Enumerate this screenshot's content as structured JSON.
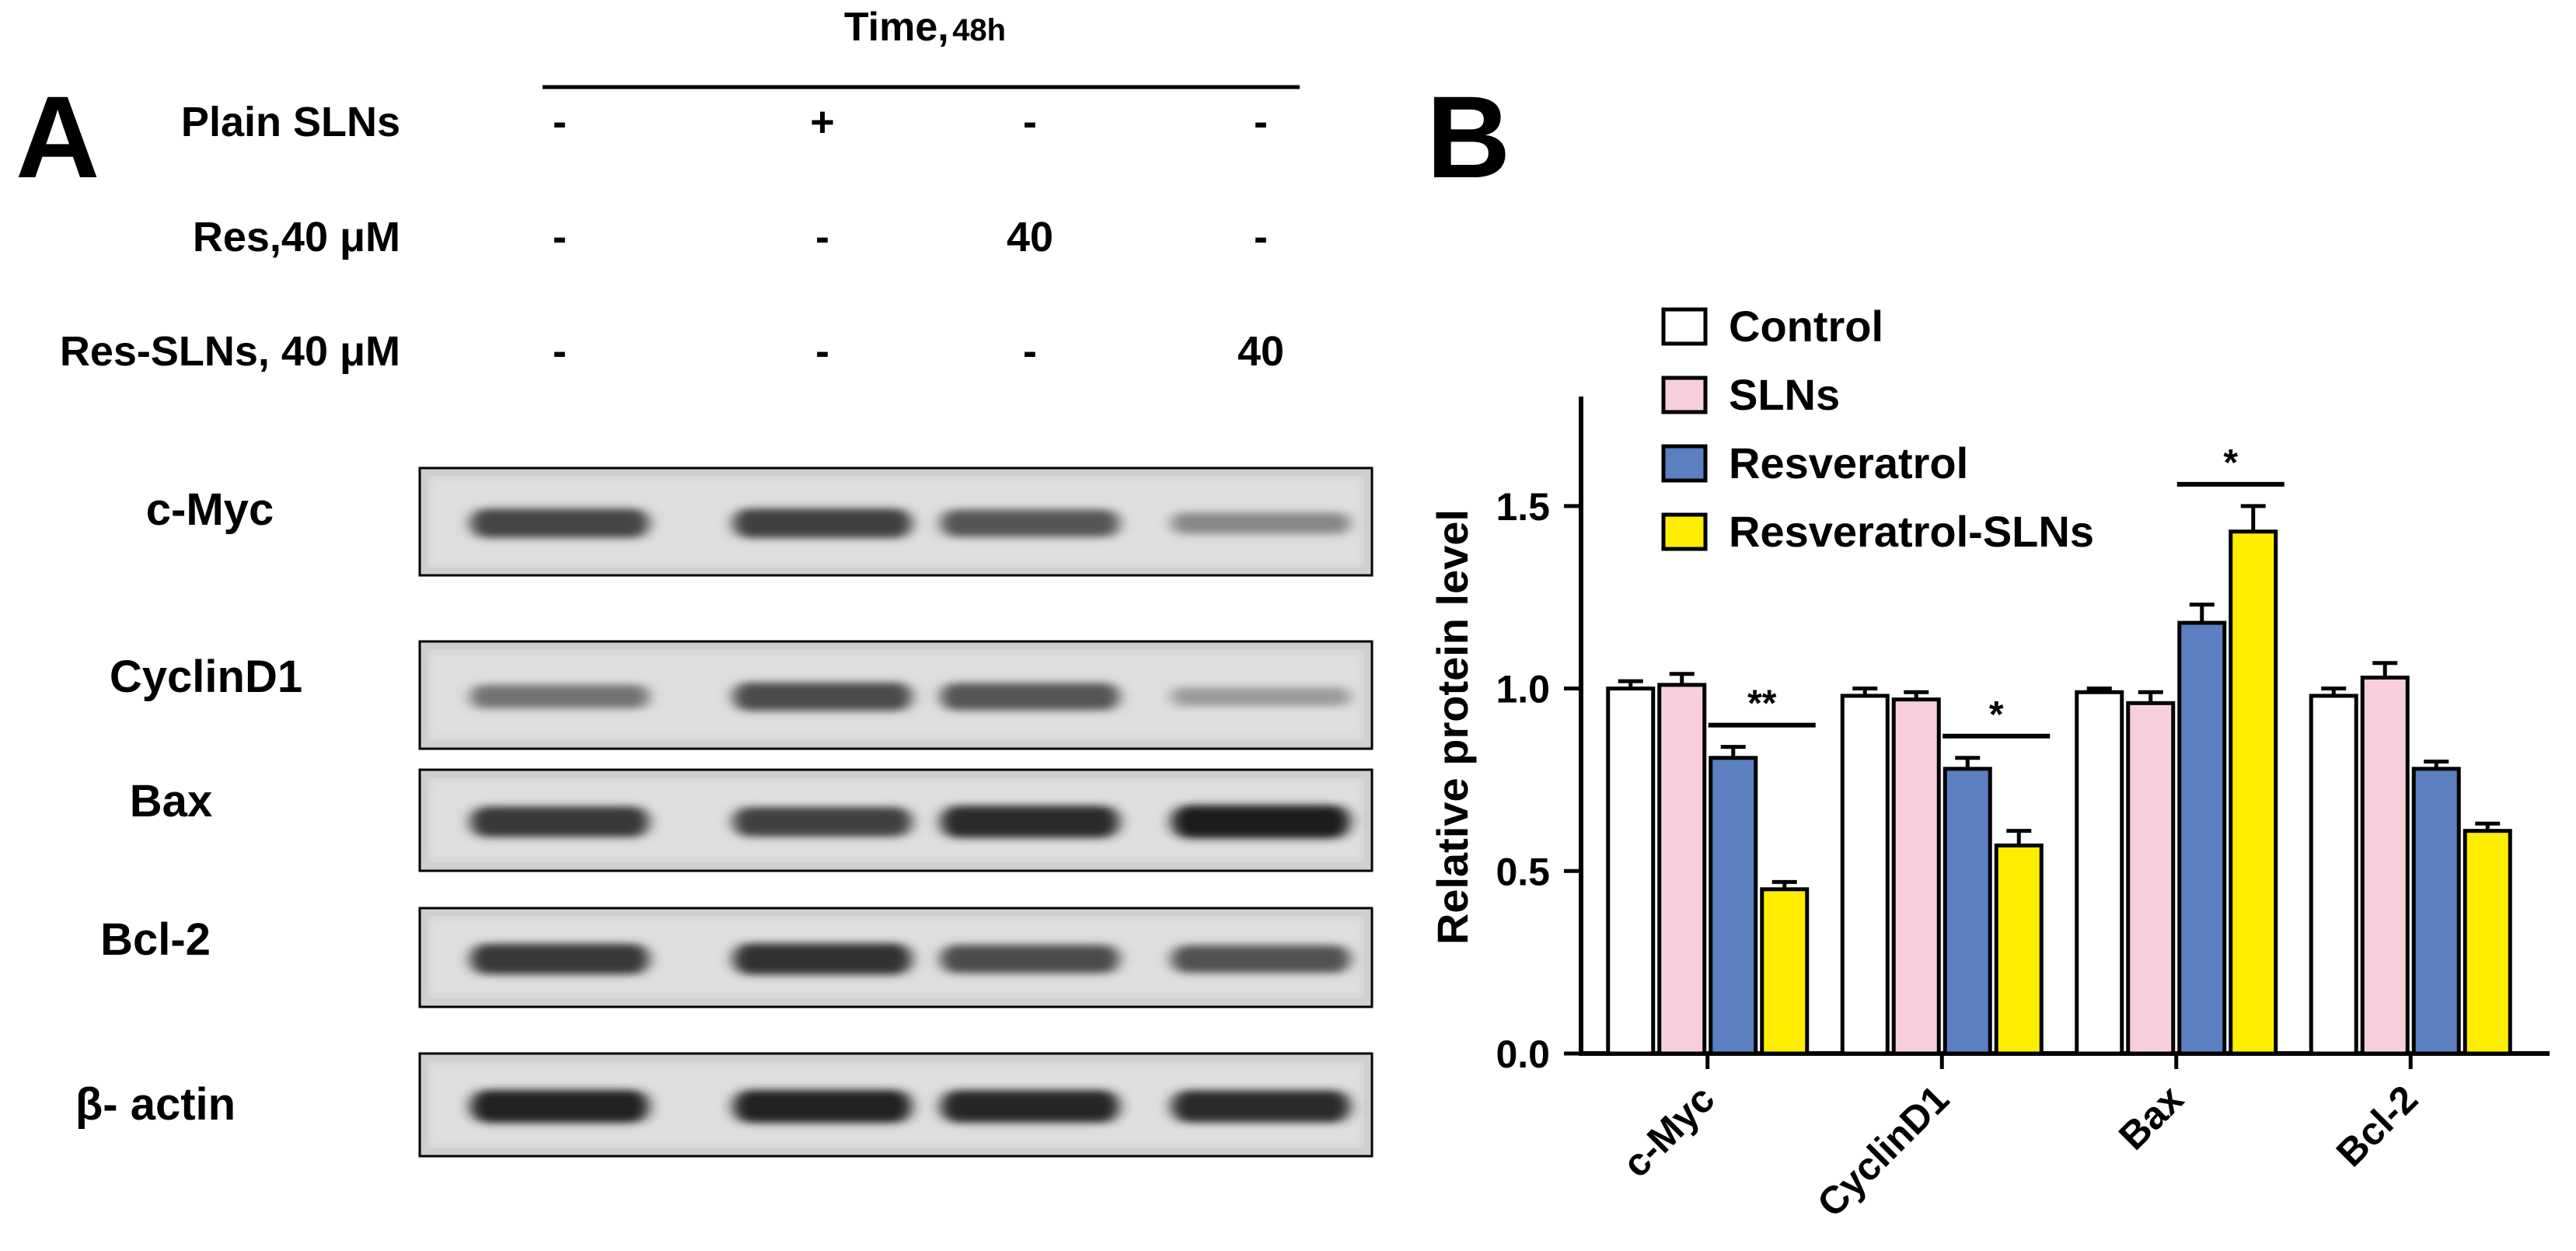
{
  "panel_a": {
    "letter": "A",
    "header": {
      "label": "Time,",
      "duration": "48h"
    },
    "treatments": [
      {
        "label": "Plain SLNs",
        "values": [
          "-",
          "+",
          "-",
          "-"
        ]
      },
      {
        "label": "Res,40 μM",
        "values": [
          "-",
          "-",
          "40",
          "-"
        ]
      },
      {
        "label": "Res-SLNs, 40 μM",
        "values": [
          "-",
          "-",
          "-",
          "40"
        ]
      }
    ],
    "blots": [
      {
        "label": "c-Myc",
        "intensity": [
          0.78,
          0.8,
          0.7,
          0.45
        ]
      },
      {
        "label": "CyclinD1",
        "intensity": [
          0.55,
          0.75,
          0.7,
          0.35
        ]
      },
      {
        "label": "Bax",
        "intensity": [
          0.85,
          0.8,
          0.92,
          0.97
        ]
      },
      {
        "label": "Bcl-2",
        "intensity": [
          0.85,
          0.88,
          0.75,
          0.72
        ]
      },
      {
        "label": "β- actin",
        "intensity": [
          0.95,
          0.95,
          0.93,
          0.92
        ]
      }
    ]
  },
  "panel_b": {
    "letter": "B"
  },
  "chart_data": {
    "type": "bar",
    "ylabel": "Relative protein  level",
    "xlabel": "",
    "ylim": [
      0,
      1.8
    ],
    "yticks": [
      "0.0",
      "0.5",
      "1.0",
      "1.5"
    ],
    "ytick_values": [
      0,
      0.5,
      1.0,
      1.5
    ],
    "categories": [
      "c-Myc",
      "CyclinD1",
      "Bax",
      "Bcl-2"
    ],
    "legend_position": "top-left",
    "series": [
      {
        "name": "Control",
        "color": "#ffffff",
        "values": [
          1.0,
          0.98,
          0.99,
          0.98
        ],
        "errors": [
          0.02,
          0.02,
          0.01,
          0.02
        ]
      },
      {
        "name": "SLNs",
        "color": "#f7cfdc",
        "values": [
          1.01,
          0.97,
          0.96,
          1.03
        ],
        "errors": [
          0.03,
          0.02,
          0.03,
          0.04
        ]
      },
      {
        "name": "Resveratrol",
        "color": "#5b7fc0",
        "values": [
          0.81,
          0.78,
          1.18,
          0.78
        ],
        "errors": [
          0.03,
          0.03,
          0.05,
          0.02
        ]
      },
      {
        "name": "Resveratrol-SLNs",
        "color": "#ffee00",
        "values": [
          0.45,
          0.57,
          1.43,
          0.61
        ],
        "errors": [
          0.02,
          0.04,
          0.07,
          0.02
        ]
      }
    ],
    "significance": [
      {
        "category": "c-Myc",
        "label": "**"
      },
      {
        "category": "CyclinD1",
        "label": "*"
      },
      {
        "category": "Bax",
        "label": "*"
      }
    ]
  }
}
